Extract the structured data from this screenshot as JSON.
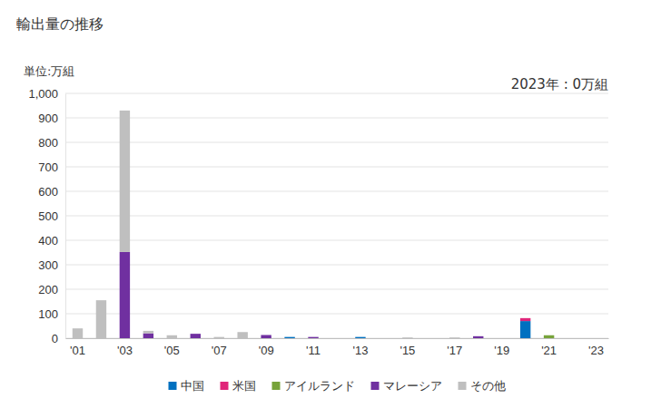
{
  "chart_data": {
    "type": "bar",
    "title": "輸出量の推移",
    "ylabel": "単位:万組",
    "annotation": "2023年 : 0万組",
    "stacked": true,
    "grid": true,
    "legend": "bottom",
    "categories": [
      "'01",
      null,
      "'03",
      null,
      "'05",
      null,
      "'07",
      null,
      "'09",
      null,
      "'11",
      null,
      "'13",
      null,
      "'15",
      null,
      "'17",
      null,
      "'19",
      null,
      "'21",
      null,
      "'23"
    ],
    "series": [
      {
        "name": "中国",
        "color": "#0070c0",
        "values": [
          0,
          0,
          0,
          0,
          0,
          0,
          0,
          0,
          0,
          5,
          0,
          0,
          5,
          0,
          0,
          0,
          0,
          0,
          0,
          70,
          0,
          0,
          0
        ]
      },
      {
        "name": "米国",
        "color": "#e0267a",
        "values": [
          0,
          0,
          0,
          0,
          0,
          0,
          0,
          0,
          0,
          0,
          0,
          0,
          0,
          0,
          0,
          0,
          0,
          0,
          0,
          12,
          0,
          0,
          0
        ]
      },
      {
        "name": "アイルランド",
        "color": "#77a33a",
        "values": [
          0,
          0,
          0,
          0,
          0,
          0,
          0,
          0,
          0,
          0,
          0,
          0,
          0,
          0,
          0,
          0,
          0,
          0,
          0,
          0,
          12,
          0,
          0
        ]
      },
      {
        "name": "マレーシア",
        "color": "#7030a0",
        "values": [
          0,
          0,
          352,
          20,
          0,
          18,
          0,
          0,
          13,
          0,
          5,
          0,
          0,
          0,
          0,
          0,
          0,
          8,
          0,
          0,
          0,
          0,
          0
        ]
      },
      {
        "name": "その他",
        "color": "#bfbfbf",
        "values": [
          40,
          155,
          578,
          10,
          12,
          0,
          5,
          25,
          0,
          0,
          0,
          0,
          0,
          0,
          3,
          0,
          3,
          0,
          0,
          0,
          0,
          0,
          0
        ]
      }
    ],
    "ylim": [
      0,
      1000
    ],
    "yticks": [
      0,
      100,
      200,
      300,
      400,
      500,
      600,
      700,
      800,
      900,
      {
        "value": 1000,
        "label": "1,000"
      }
    ]
  }
}
